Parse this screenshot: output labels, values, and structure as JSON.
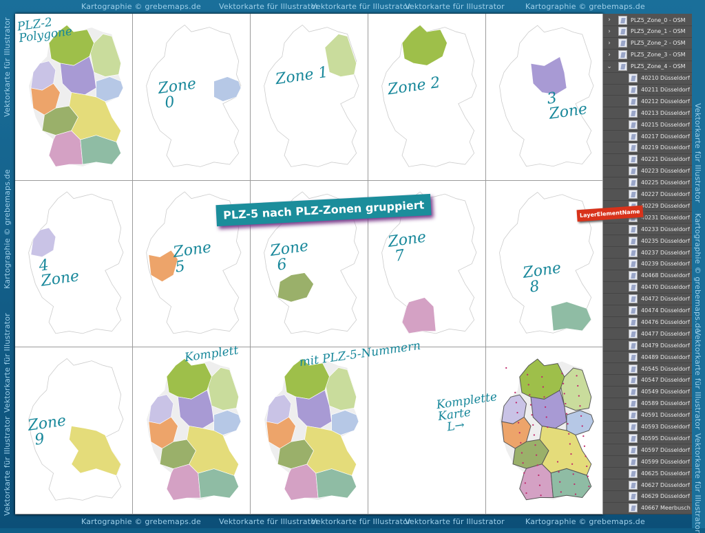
{
  "watermarks": {
    "top": [
      "Kartographie © grebemaps.de",
      "Vektorkarte für Illustrator",
      "Vektorkarte für Illustrator",
      "Vektorkarte für Illustrator",
      "Kartographie © grebemaps.de"
    ],
    "bottom": [
      "Kartographie © grebemaps.de",
      "Vektorkarte für Illustrator",
      "Vektorkarte für Illustrator",
      "Vektorkarte für Illustrator",
      "Kartographie © grebemaps.de"
    ],
    "left": [
      "Vektorkarte für Illustrator",
      "Kartographie © grebemaps.de",
      "Vektorkarte für Illustrator",
      "Vektorkarte für Illustrator"
    ],
    "right": [
      "Vektorkarte für Illustrator",
      "Kartographie © grebemaps.de",
      "Vektorkarte für Illustrator",
      "Vektorkarte für Illustrator"
    ]
  },
  "zone_colors": [
    "#b6c8e6",
    "#c9dc9c",
    "#9ebf4a",
    "#a89ad4",
    "#c9c3e6",
    "#eda46a",
    "#9ab06a",
    "#d4a1c4",
    "#8fbca4",
    "#e4dc7a"
  ],
  "cells": [
    {
      "type": "all",
      "label": "PLZ-2\nPolygone"
    },
    {
      "type": "zone",
      "zone": 0,
      "label": "Zone\n 0"
    },
    {
      "type": "zone",
      "zone": 1,
      "label": "Zone 1"
    },
    {
      "type": "zone",
      "zone": 2,
      "label": "Zone 2"
    },
    {
      "type": "zone",
      "zone": 3,
      "label": "3\nZone"
    },
    {
      "type": "zone",
      "zone": 4,
      "label": "4\nZone"
    },
    {
      "type": "zone",
      "zone": 5,
      "label": "Zone\n5"
    },
    {
      "type": "zone",
      "zone": 6,
      "label": "Zone\n 6"
    },
    {
      "type": "zone",
      "zone": 7,
      "label": "Zone\n 7"
    },
    {
      "type": "zone",
      "zone": 8,
      "label": "Zone\n 8"
    },
    {
      "type": "zone",
      "zone": 9,
      "label": "Zone\n 9"
    },
    {
      "type": "all",
      "label": "Komplett"
    },
    {
      "type": "all",
      "label": "mit PLZ-5-Nummern"
    },
    {
      "type": "empty",
      "label": ""
    },
    {
      "type": "full",
      "label": "Komplette\nKarte\n  L→"
    }
  ],
  "banner": "PLZ-5 nach PLZ-Zonen gruppiert",
  "layer_element_name": "LayerElementName",
  "layers": {
    "groups": [
      {
        "name": "PLZ5_Zone_0 - OSM",
        "expanded": false
      },
      {
        "name": "PLZ5_Zone_1 - OSM",
        "expanded": false
      },
      {
        "name": "PLZ5_Zone_2 - OSM",
        "expanded": false
      },
      {
        "name": "PLZ5_Zone_3 - OSM",
        "expanded": false
      },
      {
        "name": "PLZ5_Zone_4 - OSM",
        "expanded": true
      }
    ],
    "children": [
      "40210 Düsseldorf",
      "40211 Düsseldorf",
      "40212 Düsseldorf",
      "40213 Düsseldorf",
      "40215 Düsseldorf",
      "40217 Düsseldorf",
      "40219 Düsseldorf",
      "40221 Düsseldorf",
      "40223 Düsseldorf",
      "40225 Düsseldorf",
      "40227 Düsseldorf",
      "40229 Düsseldorf",
      "40231 Düsseldorf",
      "40233 Düsseldorf",
      "40235 Düsseldorf",
      "40237 Düsseldorf",
      "40239 Düsseldorf",
      "40468 Düsseldorf",
      "40470 Düsseldorf",
      "40472 Düsseldorf",
      "40474 Düsseldorf",
      "40476 Düsseldorf",
      "40477 Düsseldorf",
      "40479 Düsseldorf",
      "40489 Düsseldorf",
      "40545 Düsseldorf",
      "40547 Düsseldorf",
      "40549 Düsseldorf",
      "40589 Düsseldorf",
      "40591 Düsseldorf",
      "40593 Düsseldorf",
      "40595 Düsseldorf",
      "40597 Düsseldorf",
      "40599 Düsseldorf",
      "40625 Düsseldorf",
      "40627 Düsseldorf",
      "40629 Düsseldorf",
      "40667 Meerbusch"
    ]
  }
}
